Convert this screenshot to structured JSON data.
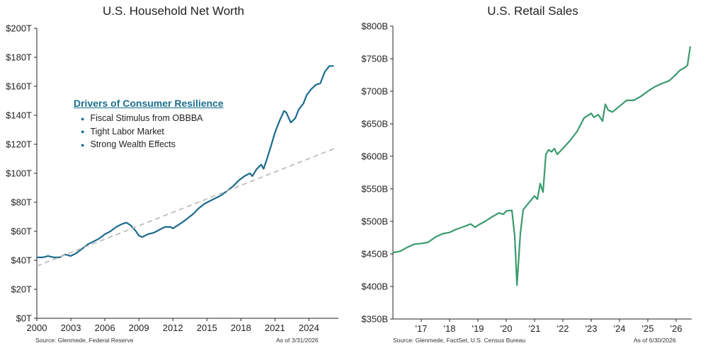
{
  "colors": {
    "networth_line": "#1b6b8f",
    "trend_line": "#bdbdbd",
    "retail_line": "#3a9a6e",
    "axis": "#222222"
  },
  "left": {
    "title": "U.S. Household Net Worth",
    "source": "Source: Glenmede, Federal Reserve",
    "asof": "As of 3/31/2026",
    "callout": {
      "title": "Drivers of Consumer Resilience",
      "items": [
        "Fiscal Stimulus from OBBBA",
        "Tight Labor Market",
        "Strong Wealth Effects"
      ]
    }
  },
  "right": {
    "title": "U.S. Retail Sales",
    "source": "Source: Glenmede, FactSet, U.S. Census Bureau",
    "asof": "As of 6/30/2026"
  },
  "chart_data": [
    {
      "type": "line",
      "title": "U.S. Household Net Worth",
      "xlim": [
        2000,
        2026.6
      ],
      "ylim": [
        0,
        200
      ],
      "x_ticks": [
        2000,
        2003,
        2006,
        2009,
        2012,
        2015,
        2018,
        2021,
        2024
      ],
      "x_tick_labels": [
        "2000",
        "2003",
        "2006",
        "2009",
        "2012",
        "2015",
        "2018",
        "2021",
        "2024"
      ],
      "y_ticks": [
        0,
        20,
        40,
        60,
        80,
        100,
        120,
        140,
        160,
        180,
        200
      ],
      "y_tick_labels": [
        "$0T",
        "$20T",
        "$40T",
        "$60T",
        "$80T",
        "$100T",
        "$120T",
        "$140T",
        "$160T",
        "$180T",
        "$200T"
      ],
      "series": [
        {
          "style": "solid",
          "points": [
            [
              2000.0,
              42
            ],
            [
              2000.5,
              42
            ],
            [
              2001.0,
              43
            ],
            [
              2001.5,
              42
            ],
            [
              2002.0,
              42
            ],
            [
              2002.5,
              44
            ],
            [
              2003.0,
              43
            ],
            [
              2003.5,
              45
            ],
            [
              2004.0,
              48
            ],
            [
              2004.5,
              51
            ],
            [
              2005.0,
              53
            ],
            [
              2005.5,
              55
            ],
            [
              2006.0,
              58
            ],
            [
              2006.5,
              60
            ],
            [
              2007.0,
              63
            ],
            [
              2007.5,
              65
            ],
            [
              2007.9,
              66
            ],
            [
              2008.3,
              64
            ],
            [
              2008.75,
              60
            ],
            [
              2009.0,
              57
            ],
            [
              2009.3,
              56
            ],
            [
              2009.8,
              58
            ],
            [
              2010.3,
              59
            ],
            [
              2010.8,
              61
            ],
            [
              2011.3,
              63
            ],
            [
              2011.8,
              63
            ],
            [
              2012.0,
              62
            ],
            [
              2012.4,
              64
            ],
            [
              2012.8,
              66
            ],
            [
              2013.3,
              69
            ],
            [
              2013.8,
              72
            ],
            [
              2014.3,
              76
            ],
            [
              2014.8,
              79
            ],
            [
              2015.3,
              81
            ],
            [
              2015.8,
              83
            ],
            [
              2016.3,
              85
            ],
            [
              2016.8,
              88
            ],
            [
              2017.3,
              91
            ],
            [
              2017.8,
              95
            ],
            [
              2018.3,
              98
            ],
            [
              2018.8,
              100
            ],
            [
              2019.0,
              98
            ],
            [
              2019.4,
              103
            ],
            [
              2019.8,
              106
            ],
            [
              2020.0,
              103
            ],
            [
              2020.3,
              110
            ],
            [
              2020.7,
              120
            ],
            [
              2021.0,
              128
            ],
            [
              2021.4,
              136
            ],
            [
              2021.8,
              143
            ],
            [
              2022.0,
              142
            ],
            [
              2022.4,
              135
            ],
            [
              2022.8,
              138
            ],
            [
              2023.1,
              144
            ],
            [
              2023.5,
              148
            ],
            [
              2023.8,
              154
            ],
            [
              2024.2,
              158
            ],
            [
              2024.6,
              161
            ],
            [
              2025.0,
              162
            ],
            [
              2025.4,
              170
            ],
            [
              2025.8,
              174
            ],
            [
              2026.2,
              174
            ]
          ]
        },
        {
          "style": "dashed",
          "points": [
            [
              2000.0,
              36
            ],
            [
              2026.2,
              117
            ]
          ]
        }
      ]
    },
    {
      "type": "line",
      "title": "U.S. Retail Sales",
      "xlim": [
        2016.0,
        2026.55
      ],
      "ylim": [
        350,
        800
      ],
      "x_ticks": [
        2017,
        2018,
        2019,
        2020,
        2021,
        2022,
        2023,
        2024,
        2025,
        2026
      ],
      "x_tick_labels": [
        "'17",
        "'18",
        "'19",
        "'20",
        "'21",
        "'22",
        "'23",
        "'24",
        "'25",
        "'26"
      ],
      "y_ticks": [
        350,
        400,
        450,
        500,
        550,
        600,
        650,
        700,
        750,
        800
      ],
      "y_tick_labels": [
        "$350B",
        "$400B",
        "$450B",
        "$500B",
        "$550B",
        "$600B",
        "$650B",
        "$700B",
        "$750B",
        "$800B"
      ],
      "series": [
        {
          "style": "solid",
          "points": [
            [
              2016.0,
              452
            ],
            [
              2016.25,
              454
            ],
            [
              2016.5,
              460
            ],
            [
              2016.75,
              465
            ],
            [
              2017.0,
              466
            ],
            [
              2017.25,
              468
            ],
            [
              2017.5,
              476
            ],
            [
              2017.75,
              481
            ],
            [
              2018.0,
              483
            ],
            [
              2018.25,
              488
            ],
            [
              2018.5,
              492
            ],
            [
              2018.75,
              496
            ],
            [
              2018.9,
              491
            ],
            [
              2019.0,
              494
            ],
            [
              2019.25,
              500
            ],
            [
              2019.5,
              507
            ],
            [
              2019.75,
              513
            ],
            [
              2019.9,
              511
            ],
            [
              2020.0,
              516
            ],
            [
              2020.2,
              517
            ],
            [
              2020.3,
              478
            ],
            [
              2020.38,
              402
            ],
            [
              2020.5,
              482
            ],
            [
              2020.6,
              518
            ],
            [
              2020.75,
              526
            ],
            [
              2021.0,
              539
            ],
            [
              2021.1,
              534
            ],
            [
              2021.2,
              558
            ],
            [
              2021.3,
              545
            ],
            [
              2021.4,
              603
            ],
            [
              2021.5,
              610
            ],
            [
              2021.6,
              607
            ],
            [
              2021.7,
              612
            ],
            [
              2021.8,
              603
            ],
            [
              2022.0,
              612
            ],
            [
              2022.25,
              624
            ],
            [
              2022.5,
              638
            ],
            [
              2022.75,
              659
            ],
            [
              2023.0,
              666
            ],
            [
              2023.1,
              660
            ],
            [
              2023.25,
              664
            ],
            [
              2023.4,
              654
            ],
            [
              2023.5,
              680
            ],
            [
              2023.6,
              671
            ],
            [
              2023.75,
              668
            ],
            [
              2024.0,
              677
            ],
            [
              2024.25,
              686
            ],
            [
              2024.5,
              686
            ],
            [
              2024.75,
              692
            ],
            [
              2025.0,
              700
            ],
            [
              2025.25,
              707
            ],
            [
              2025.5,
              712
            ],
            [
              2025.75,
              716
            ],
            [
              2026.0,
              726
            ],
            [
              2026.1,
              731
            ],
            [
              2026.2,
              734
            ],
            [
              2026.3,
              736
            ],
            [
              2026.4,
              740
            ],
            [
              2026.5,
              769
            ]
          ]
        }
      ]
    }
  ]
}
